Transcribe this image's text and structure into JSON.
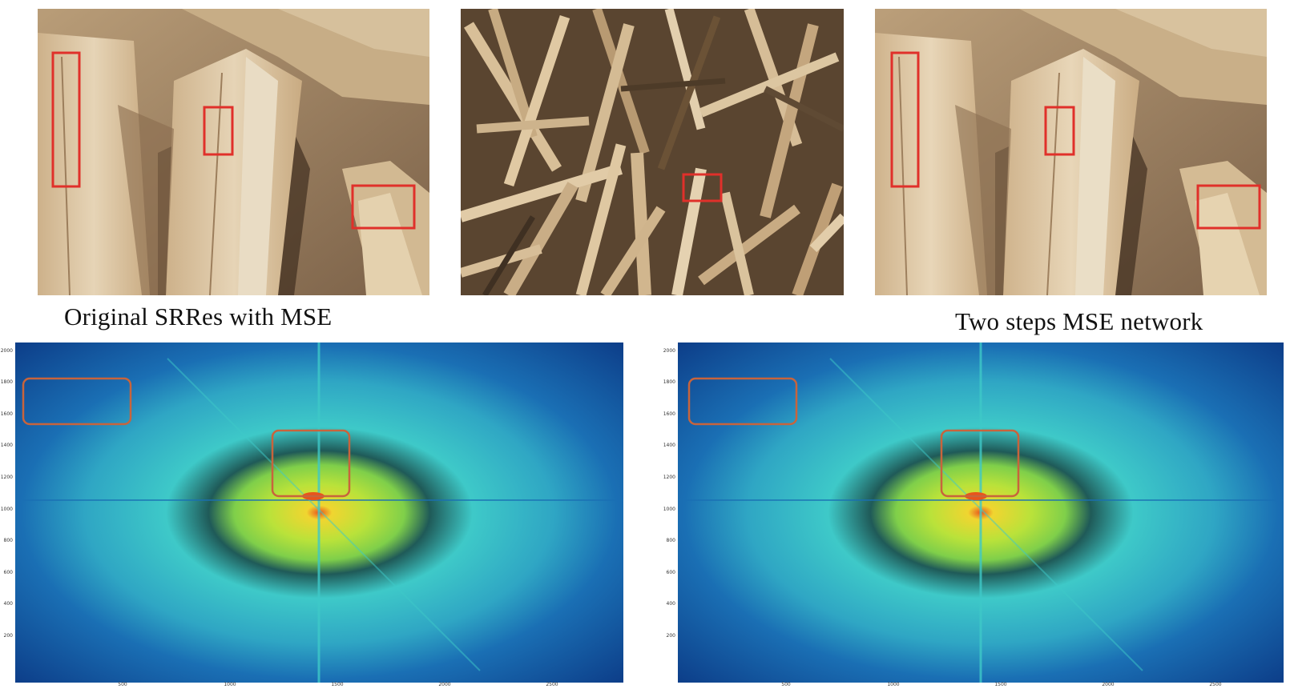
{
  "captions": {
    "left": "Original SRRes with MSE",
    "right": "Two steps MSE network"
  },
  "colors": {
    "crop_box": "#e0302a",
    "spectrum_box": "#c8643c",
    "wood_light": "#d8bf98",
    "wood_dark": "#6b5236",
    "spectrum_outer": "#114e9e",
    "spectrum_mid": "#3ec9c8",
    "spectrum_inner": "#b9e23a",
    "spectrum_core": "#e8541c"
  },
  "spectra": {
    "left": {
      "yticks": [
        "2000",
        "1800",
        "1600",
        "1400",
        "1200",
        "1000",
        "800",
        "600",
        "400",
        "200"
      ],
      "xticks": [
        "500",
        "1000",
        "1500",
        "2000",
        "2500"
      ]
    },
    "right": {
      "yticks": [
        "2000",
        "1800",
        "1600",
        "1400",
        "1200",
        "1000",
        "800",
        "600",
        "400",
        "200"
      ],
      "xticks": [
        "500",
        "1000",
        "1500",
        "2000",
        "2500"
      ]
    }
  }
}
